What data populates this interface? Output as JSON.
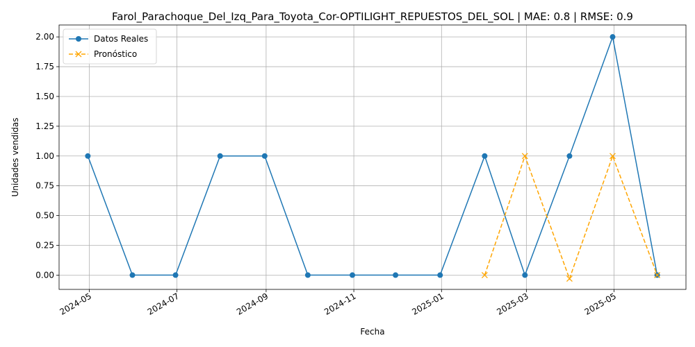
{
  "chart_data": {
    "type": "line",
    "title": "Farol_Parachoque_Del_Izq_Para_Toyota_Cor-OPTILIGHT_REPUESTOS_DEL_SOL | MAE: 0.8 | RMSE: 0.9",
    "xlabel": "Fecha",
    "ylabel": "Unidades vendidas",
    "x_ticks": [
      "2024-05",
      "2024-07",
      "2024-09",
      "2024-11",
      "2025-01",
      "2025-03",
      "2025-05"
    ],
    "y_ticks": [
      "0.00",
      "0.25",
      "0.50",
      "0.75",
      "1.00",
      "1.25",
      "1.50",
      "1.75",
      "2.00"
    ],
    "ylim": [
      -0.12,
      2.1
    ],
    "grid": true,
    "legend_position": "top-left",
    "series": [
      {
        "name": "Datos Reales",
        "color": "#1f77b4",
        "style": "solid",
        "marker": "circle",
        "x": [
          "2024-04-30",
          "2024-05-31",
          "2024-06-30",
          "2024-07-31",
          "2024-08-31",
          "2024-09-30",
          "2024-10-31",
          "2024-11-30",
          "2024-12-31",
          "2025-01-31",
          "2025-02-28",
          "2025-03-31",
          "2025-04-30",
          "2025-05-31"
        ],
        "values": [
          1,
          0,
          0,
          1,
          1,
          0,
          0,
          0,
          0,
          1,
          0,
          1,
          2,
          0
        ]
      },
      {
        "name": "Pronóstico",
        "color": "#ffa500",
        "style": "dashed",
        "marker": "x",
        "x": [
          "2025-01-31",
          "2025-02-28",
          "2025-03-31",
          "2025-04-30",
          "2025-05-31"
        ],
        "values": [
          0,
          1,
          -0.03,
          1,
          0
        ]
      }
    ]
  }
}
